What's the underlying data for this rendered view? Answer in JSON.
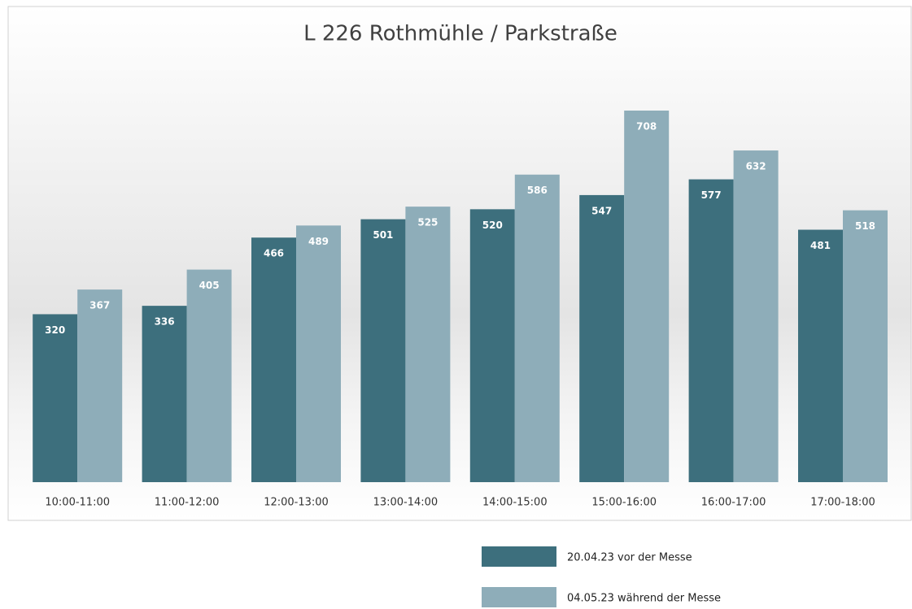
{
  "chart_data": {
    "type": "bar",
    "title": "L 226 Rothmühle / Parkstraße",
    "categories": [
      "10:00-11:00",
      "11:00-12:00",
      "12:00-13:00",
      "13:00-14:00",
      "14:00-15:00",
      "15:00-16:00",
      "16:00-17:00",
      "17:00-18:00"
    ],
    "series": [
      {
        "name": "20.04.23  vor der Messe",
        "color": "#3d6f7d",
        "values": [
          320,
          336,
          466,
          501,
          520,
          547,
          577,
          481
        ]
      },
      {
        "name": "04.05.23  während der Messe",
        "color": "#8eadb9",
        "values": [
          367,
          405,
          489,
          525,
          586,
          708,
          632,
          518
        ]
      }
    ],
    "legend": "bottom"
  }
}
